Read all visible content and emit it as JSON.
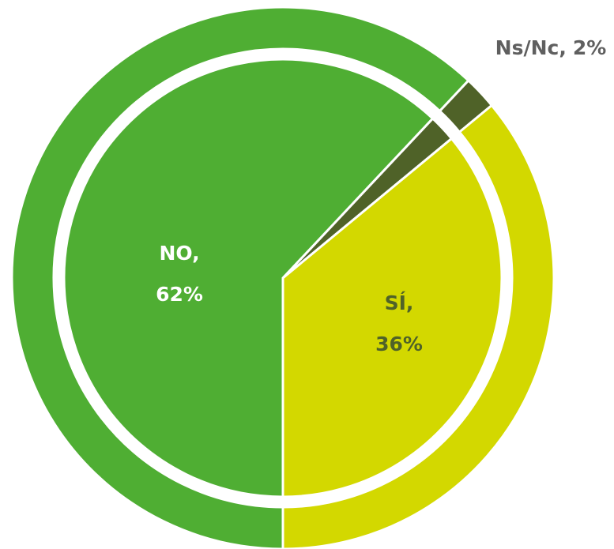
{
  "chart_data": {
    "type": "pie",
    "categories": [
      "NO,",
      "Ns/Nc,",
      "SÍ,"
    ],
    "values": [
      62,
      2,
      36
    ],
    "value_labels": [
      "62%",
      "2%",
      "36%"
    ],
    "colors": [
      "#4fae33",
      "#4f6228",
      "#d3d800"
    ],
    "label_colors": [
      "#ffffff",
      "#5f5f5f",
      "#4f6228"
    ]
  }
}
